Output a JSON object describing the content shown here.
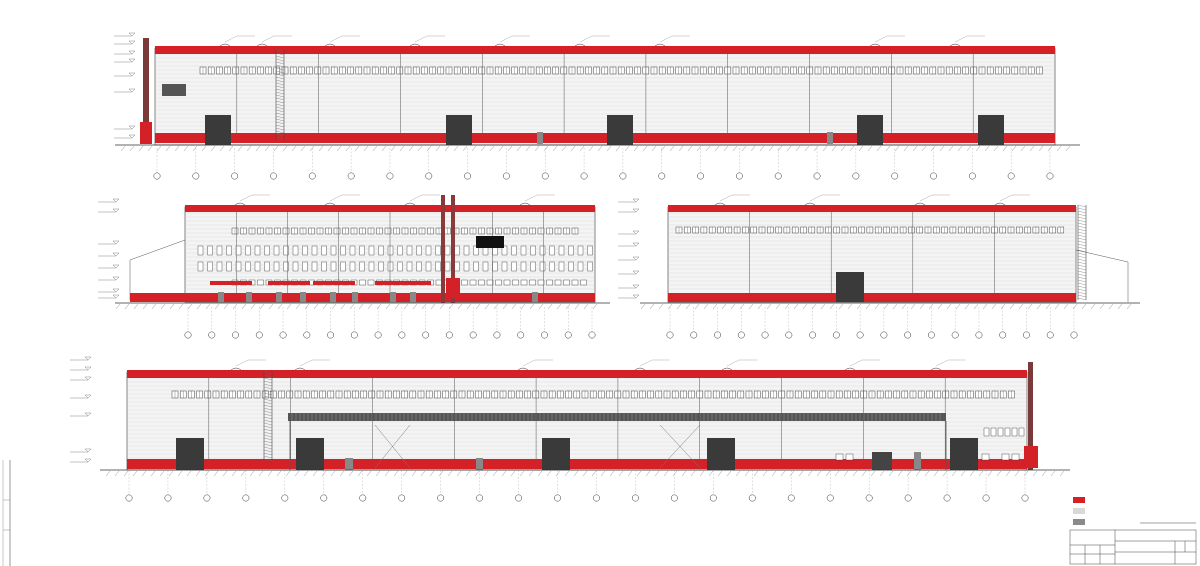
{
  "drawing": {
    "stamp": {
      "sheet_code": "",
      "sheet_number": ""
    }
  },
  "legend": {
    "items": [
      {
        "swatch": "#d42127",
        "label": ""
      },
      {
        "swatch": "#d9d9d9",
        "label": ""
      },
      {
        "swatch": "#8a8a8a",
        "label": ""
      }
    ]
  },
  "colors": {
    "accent_red": "#d42127",
    "panel_light": "#efefef",
    "panel_line": "#c9c9c9",
    "gate_dark": "#3a3a3a",
    "outline": "#333333"
  }
}
